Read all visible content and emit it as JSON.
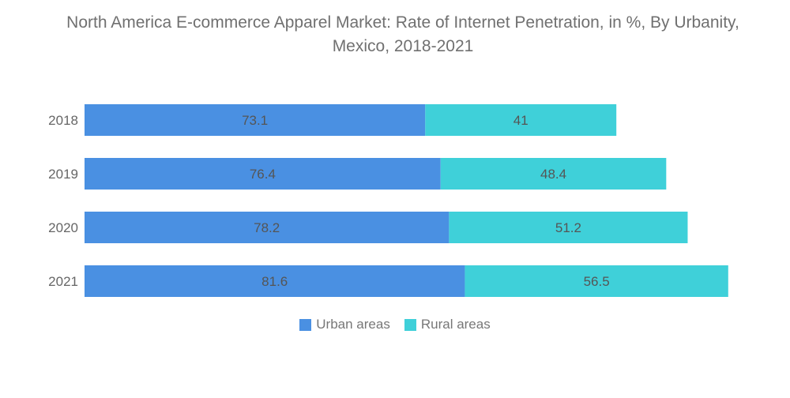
{
  "chart_data": {
    "type": "bar",
    "orientation": "horizontal",
    "stacked": true,
    "title": "North America E-commerce Apparel Market: Rate of Internet Penetration, in %, By Urbanity, Mexico, 2018-2021",
    "categories": [
      "2018",
      "2019",
      "2020",
      "2021"
    ],
    "series": [
      {
        "name": "Urban areas",
        "color": "#4a90e2",
        "values": [
          73.1,
          76.4,
          78.2,
          81.6
        ]
      },
      {
        "name": "Rural areas",
        "color": "#3fd0d9",
        "values": [
          41,
          48.4,
          51.2,
          56.5
        ]
      }
    ],
    "xlabel": "",
    "ylabel": "",
    "grid": false,
    "legend": "bottom-center"
  }
}
